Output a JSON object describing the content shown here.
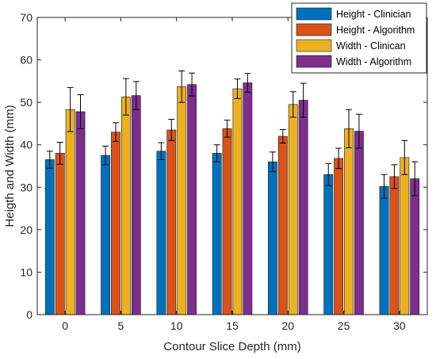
{
  "chart_data": {
    "type": "bar",
    "title": "",
    "xlabel": "Contour Slice Depth (mm)",
    "ylabel": "Heigth and Width (mm)",
    "categories": [
      "0",
      "5",
      "10",
      "15",
      "20",
      "25",
      "30"
    ],
    "ylim": [
      0,
      70
    ],
    "yticks": [
      "0",
      "10",
      "20",
      "30",
      "40",
      "50",
      "60",
      "70"
    ],
    "grid": false,
    "legend_position": "top-right",
    "error_bars": true,
    "series": [
      {
        "name": "Height - Clinician",
        "color": "#0072BD",
        "values": [
          36.5,
          37.5,
          38.5,
          38.0,
          36.0,
          33.0,
          30.2
        ],
        "errors": [
          2.0,
          2.2,
          2.0,
          2.0,
          2.3,
          2.6,
          2.8
        ]
      },
      {
        "name": "Height - Algorithm",
        "color": "#D95319",
        "values": [
          38.0,
          43.0,
          43.5,
          43.8,
          42.0,
          36.8,
          32.5
        ],
        "errors": [
          2.6,
          2.2,
          2.5,
          2.0,
          1.6,
          2.4,
          2.8
        ]
      },
      {
        "name": "Width - Clinican",
        "color": "#EDB120",
        "values": [
          48.3,
          51.3,
          53.7,
          53.2,
          49.5,
          43.8,
          37.0
        ],
        "errors": [
          5.2,
          4.3,
          3.7,
          2.3,
          3.0,
          4.5,
          4.0
        ]
      },
      {
        "name": "Width - Algorithm",
        "color": "#7E2F8E",
        "values": [
          47.8,
          51.6,
          54.2,
          54.6,
          50.5,
          43.2,
          32.0
        ],
        "errors": [
          4.0,
          3.3,
          2.7,
          2.2,
          4.0,
          4.0,
          4.0
        ]
      }
    ]
  }
}
